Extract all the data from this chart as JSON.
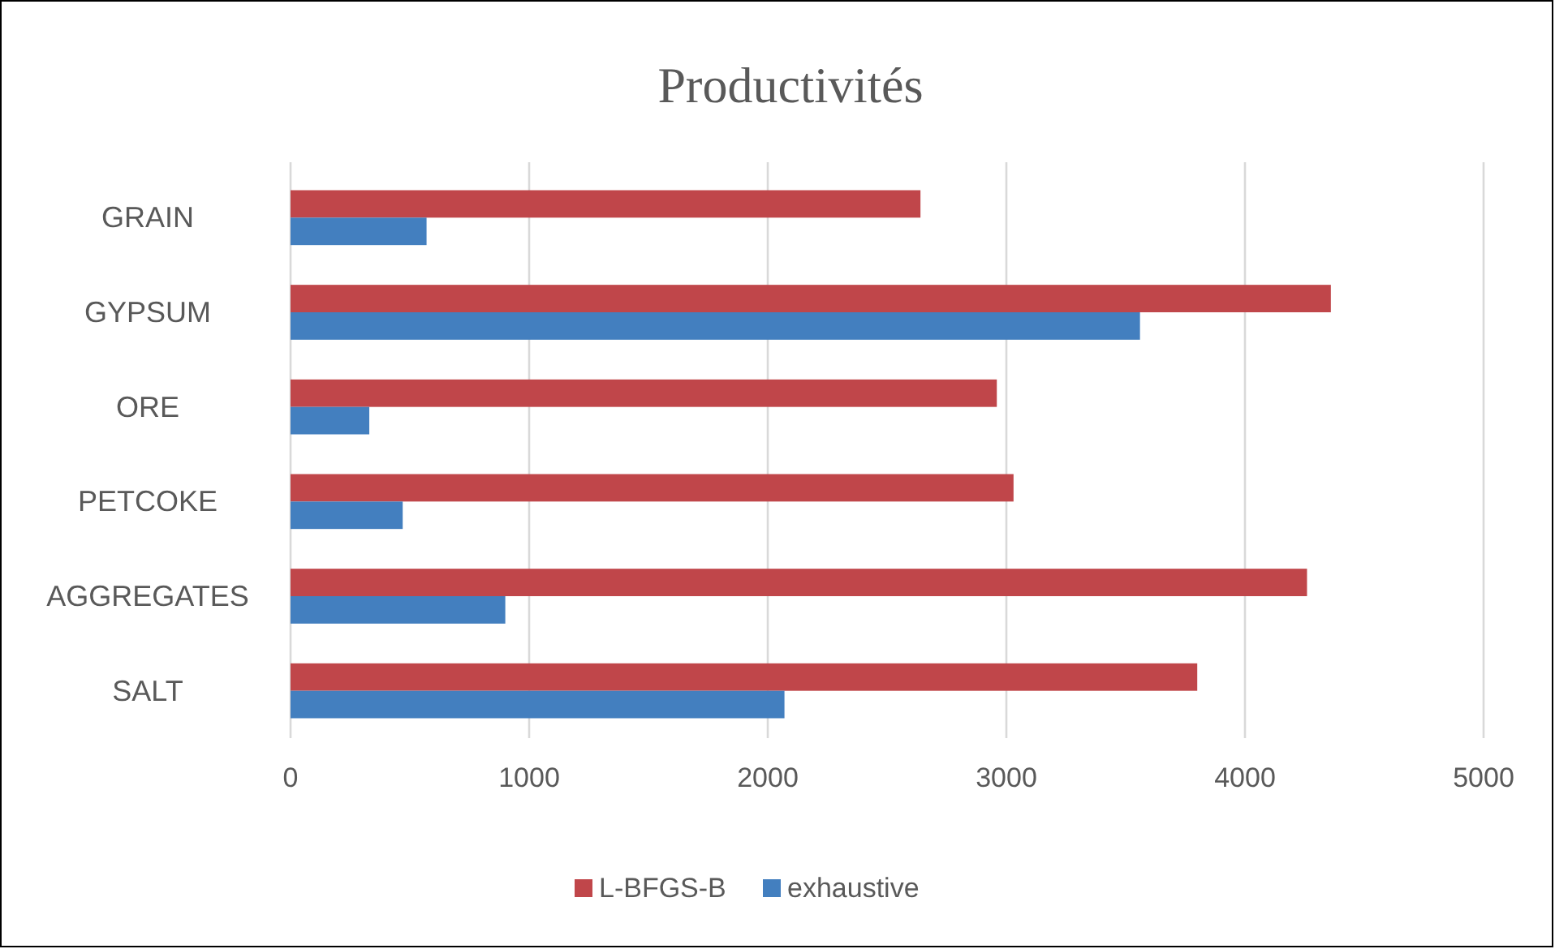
{
  "chart_data": {
    "type": "bar",
    "orientation": "horizontal",
    "title": "Productivités",
    "categories": [
      "GRAIN",
      "GYPSUM",
      "ORE",
      "PETCOKE",
      "AGGREGATES",
      "SALT"
    ],
    "series": [
      {
        "name": "L-BFGS-B",
        "color": "#c0464a",
        "values": [
          2640,
          4360,
          2960,
          3030,
          4260,
          3800
        ]
      },
      {
        "name": "exhaustive",
        "color": "#437fbf",
        "values": [
          570,
          3560,
          330,
          470,
          900,
          2070
        ]
      }
    ],
    "xlim": [
      0,
      5000
    ],
    "xticks": [
      0,
      1000,
      2000,
      3000,
      4000,
      5000
    ],
    "grid": "x",
    "legend": "bottom"
  }
}
